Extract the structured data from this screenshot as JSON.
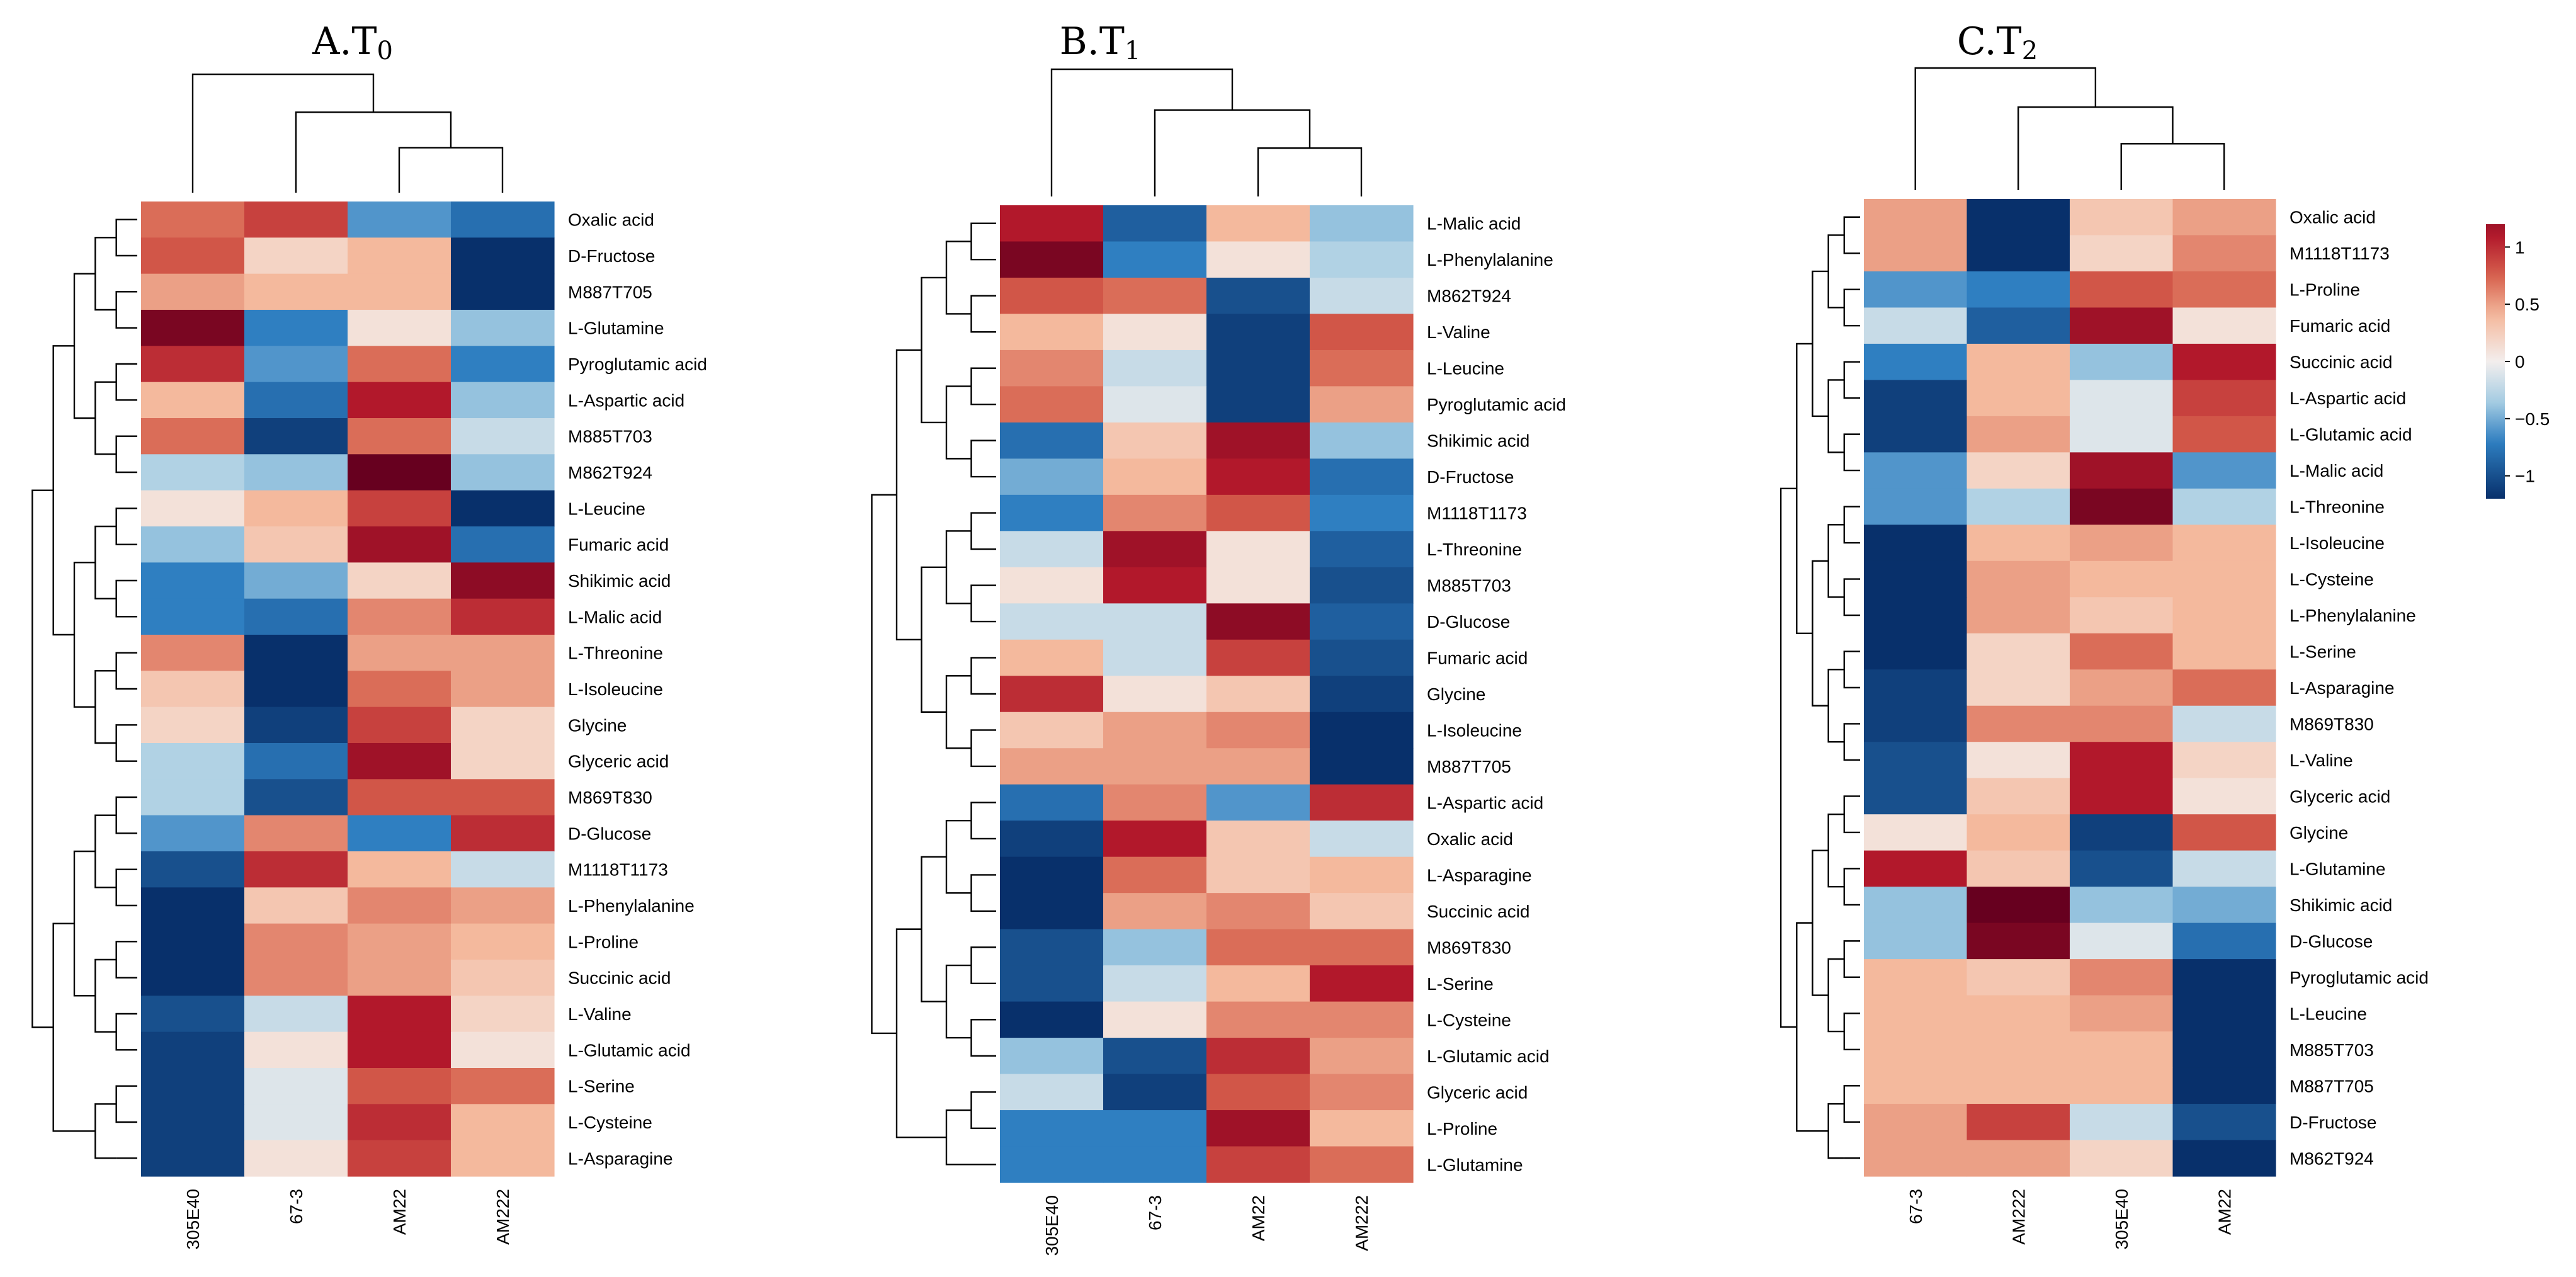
{
  "chart_data": [
    {
      "type": "heatmap",
      "title": "A.T0",
      "title_main": "A.T",
      "title_sub": "0",
      "columns": [
        "305E40",
        "67-3",
        "AM22",
        "AM222"
      ],
      "rows": [
        "Oxalic acid",
        "D-Fructose",
        "M887T705",
        "L-Glutamine",
        "Pyroglutamic acid",
        "L-Aspartic acid",
        "M885T703",
        "M862T924",
        "L-Leucine",
        "Fumaric acid",
        "Shikimic acid",
        "L-Malic acid",
        "L-Threonine",
        "L-Isoleucine",
        "Glycine",
        "Glyceric acid",
        "M869T830",
        "D-Glucose",
        "M1118T1173",
        "L-Phenylalanine",
        "L-Proline",
        "Succinic acid",
        "L-Valine",
        "L-Glutamic acid",
        "L-Serine",
        "L-Cysteine",
        "L-Asparagine"
      ],
      "values": [
        [
          0.7,
          0.9,
          -0.6,
          -0.8
        ],
        [
          0.8,
          0.2,
          0.4,
          -1.2
        ],
        [
          0.5,
          0.4,
          0.4,
          -1.2
        ],
        [
          1.4,
          -0.7,
          0.1,
          -0.4
        ],
        [
          1.0,
          -0.6,
          0.7,
          -0.7
        ],
        [
          0.4,
          -0.8,
          1.1,
          -0.4
        ],
        [
          0.7,
          -1.1,
          0.7,
          -0.2
        ],
        [
          -0.3,
          -0.4,
          1.5,
          -0.4
        ],
        [
          0.1,
          0.4,
          0.9,
          -1.2
        ],
        [
          -0.4,
          0.3,
          1.2,
          -0.8
        ],
        [
          -0.7,
          -0.5,
          0.2,
          1.3
        ],
        [
          -0.7,
          -0.8,
          0.6,
          1.0
        ],
        [
          0.6,
          -1.2,
          0.5,
          0.5
        ],
        [
          0.3,
          -1.2,
          0.7,
          0.5
        ],
        [
          0.2,
          -1.1,
          0.9,
          0.2
        ],
        [
          -0.3,
          -0.8,
          1.2,
          0.2
        ],
        [
          -0.3,
          -1.0,
          0.8,
          0.8
        ],
        [
          -0.6,
          0.6,
          -0.7,
          1.0
        ],
        [
          -1.0,
          1.0,
          0.4,
          -0.2
        ],
        [
          -1.2,
          0.3,
          0.6,
          0.5
        ],
        [
          -1.2,
          0.6,
          0.5,
          0.4
        ],
        [
          -1.2,
          0.6,
          0.5,
          0.3
        ],
        [
          -1.0,
          -0.2,
          1.1,
          0.2
        ],
        [
          -1.1,
          0.1,
          1.1,
          0.1
        ],
        [
          -1.1,
          -0.1,
          0.8,
          0.7
        ],
        [
          -1.1,
          -0.1,
          1.0,
          0.4
        ],
        [
          -1.1,
          0.1,
          0.9,
          0.4
        ]
      ]
    },
    {
      "type": "heatmap",
      "title": "B.T1",
      "title_main": "B.T",
      "title_sub": "1",
      "columns": [
        "305E40",
        "67-3",
        "AM22",
        "AM222"
      ],
      "rows": [
        "L-Malic acid",
        "L-Phenylalanine",
        "M862T924",
        "L-Valine",
        "L-Leucine",
        "Pyroglutamic acid",
        "Shikimic acid",
        "D-Fructose",
        "M1118T1173",
        "L-Threonine",
        "M885T703",
        "D-Glucose",
        "Fumaric acid",
        "Glycine",
        "L-Isoleucine",
        "M887T705",
        "L-Aspartic acid",
        "Oxalic acid",
        "L-Asparagine",
        "Succinic acid",
        "M869T830",
        "L-Serine",
        "L-Cysteine",
        "L-Glutamic acid",
        "Glyceric acid",
        "L-Proline",
        "L-Glutamine"
      ],
      "values": [
        [
          1.1,
          -0.9,
          0.4,
          -0.4
        ],
        [
          1.4,
          -0.7,
          0.1,
          -0.3
        ],
        [
          0.8,
          0.7,
          -1.0,
          -0.2
        ],
        [
          0.4,
          0.1,
          -1.1,
          0.8
        ],
        [
          0.6,
          -0.2,
          -1.1,
          0.7
        ],
        [
          0.7,
          -0.1,
          -1.1,
          0.5
        ],
        [
          -0.8,
          0.3,
          1.2,
          -0.4
        ],
        [
          -0.5,
          0.4,
          1.1,
          -0.8
        ],
        [
          -0.7,
          0.6,
          0.8,
          -0.7
        ],
        [
          -0.2,
          1.2,
          0.1,
          -0.9
        ],
        [
          0.1,
          1.1,
          0.1,
          -1.0
        ],
        [
          -0.2,
          -0.2,
          1.3,
          -0.9
        ],
        [
          0.4,
          -0.2,
          0.9,
          -1.0
        ],
        [
          1.0,
          0.1,
          0.3,
          -1.1
        ],
        [
          0.3,
          0.5,
          0.6,
          -1.2
        ],
        [
          0.5,
          0.5,
          0.5,
          -1.2
        ],
        [
          -0.8,
          0.6,
          -0.6,
          1.0
        ],
        [
          -1.1,
          1.1,
          0.3,
          -0.2
        ],
        [
          -1.2,
          0.7,
          0.3,
          0.4
        ],
        [
          -1.2,
          0.5,
          0.6,
          0.3
        ],
        [
          -1.0,
          -0.4,
          0.7,
          0.7
        ],
        [
          -1.0,
          -0.2,
          0.4,
          1.1
        ],
        [
          -1.2,
          0.1,
          0.6,
          0.6
        ],
        [
          -0.4,
          -1.0,
          1.0,
          0.5
        ],
        [
          -0.2,
          -1.1,
          0.8,
          0.6
        ],
        [
          -0.7,
          -0.7,
          1.2,
          0.4
        ],
        [
          -0.7,
          -0.7,
          0.9,
          0.7
        ]
      ]
    },
    {
      "type": "heatmap",
      "title": "C.T2",
      "title_main": "C.T",
      "title_sub": "2",
      "columns": [
        "67-3",
        "AM222",
        "305E40",
        "AM22"
      ],
      "rows": [
        "Oxalic acid",
        "M1118T1173",
        "L-Proline",
        "Fumaric acid",
        "Succinic acid",
        "L-Aspartic acid",
        "L-Glutamic acid",
        "L-Malic acid",
        "L-Threonine",
        "L-Isoleucine",
        "L-Cysteine",
        "L-Phenylalanine",
        "L-Serine",
        "L-Asparagine",
        "M869T830",
        "L-Valine",
        "Glyceric acid",
        "Glycine",
        "L-Glutamine",
        "Shikimic acid",
        "D-Glucose",
        "Pyroglutamic acid",
        "L-Leucine",
        "M885T703",
        "M887T705",
        "D-Fructose",
        "M862T924"
      ],
      "values": [
        [
          0.5,
          -1.2,
          0.3,
          0.5
        ],
        [
          0.5,
          -1.2,
          0.2,
          0.6
        ],
        [
          -0.6,
          -0.7,
          0.8,
          0.7
        ],
        [
          -0.2,
          -0.9,
          1.2,
          0.1
        ],
        [
          -0.7,
          0.4,
          -0.4,
          1.1
        ],
        [
          -1.1,
          0.4,
          -0.1,
          0.9
        ],
        [
          -1.1,
          0.5,
          -0.1,
          0.8
        ],
        [
          -0.6,
          0.2,
          1.2,
          -0.6
        ],
        [
          -0.6,
          -0.3,
          1.4,
          -0.3
        ],
        [
          -1.2,
          0.4,
          0.5,
          0.4
        ],
        [
          -1.2,
          0.5,
          0.4,
          0.4
        ],
        [
          -1.2,
          0.5,
          0.3,
          0.4
        ],
        [
          -1.2,
          0.2,
          0.7,
          0.4
        ],
        [
          -1.1,
          0.2,
          0.5,
          0.7
        ],
        [
          -1.1,
          0.6,
          0.6,
          -0.2
        ],
        [
          -1.0,
          0.1,
          1.1,
          0.2
        ],
        [
          -1.0,
          0.3,
          1.1,
          0.1
        ],
        [
          0.1,
          0.4,
          -1.1,
          0.8
        ],
        [
          1.1,
          0.3,
          -1.0,
          -0.2
        ],
        [
          -0.4,
          1.5,
          -0.4,
          -0.5
        ],
        [
          -0.4,
          1.4,
          -0.1,
          -0.8
        ],
        [
          0.4,
          0.3,
          0.6,
          -1.2
        ],
        [
          0.4,
          0.4,
          0.5,
          -1.2
        ],
        [
          0.4,
          0.4,
          0.4,
          -1.2
        ],
        [
          0.4,
          0.4,
          0.4,
          -1.2
        ],
        [
          0.5,
          0.9,
          -0.2,
          -1.0
        ],
        [
          0.5,
          0.5,
          0.2,
          -1.2
        ]
      ]
    }
  ],
  "legend": {
    "ticks": [
      "1",
      "0.5",
      "0",
      "−0.5",
      "−1"
    ],
    "tick_values": [
      1,
      0.5,
      0,
      -0.5,
      -1
    ],
    "range": [
      -1.2,
      1.2
    ]
  },
  "colors": {
    "low": "#08306b",
    "low_mid": "#2f7fc1",
    "light_low": "#a6cde3",
    "neutral": "#f3eeed",
    "light_high": "#f4b99d",
    "high_mid": "#d6604d",
    "high": "#b2182b",
    "very_high": "#67001f"
  }
}
